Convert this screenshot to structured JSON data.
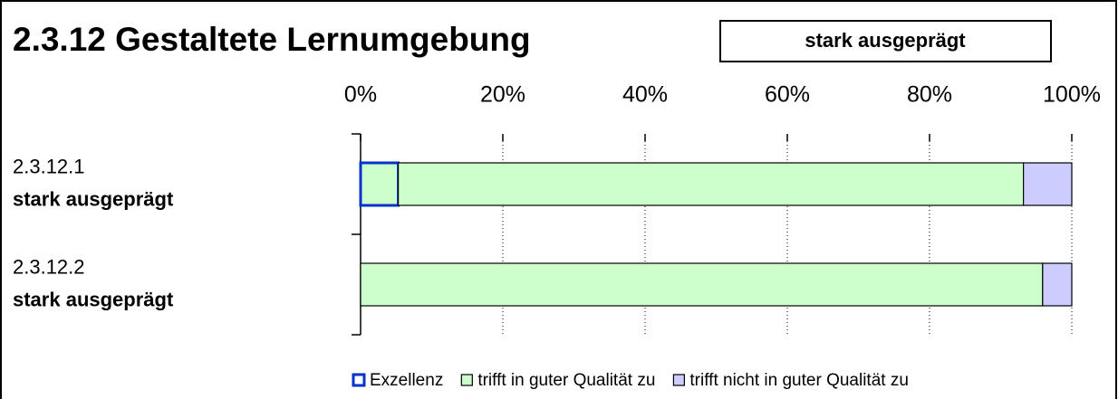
{
  "chart_data": {
    "type": "stacked_barh",
    "title": "2.3.12 Gestaltete Lernumgebung",
    "badge": "stark ausgeprägt",
    "categories": [
      "2.3.12.1",
      "2.3.12.2"
    ],
    "category_ratings": [
      "stark ausgeprägt",
      "stark ausgeprägt"
    ],
    "series": [
      {
        "name": "Exzellenz",
        "color": "#0033cc",
        "fill": "#ccffcc",
        "values": [
          5.3,
          0
        ]
      },
      {
        "name": "trifft in guter Qualität zu",
        "color": "#000000",
        "fill": "#ccffcc",
        "values": [
          87.9,
          95.9
        ]
      },
      {
        "name": "trifft nicht in guter Qualität zu",
        "color": "#000000",
        "fill": "#ccccff",
        "values": [
          6.8,
          4.1
        ]
      }
    ],
    "xlim": [
      0,
      100
    ],
    "xticks": [
      {
        "value": 0,
        "label": "0%"
      },
      {
        "value": 20,
        "label": "20%"
      },
      {
        "value": 40,
        "label": "40%"
      },
      {
        "value": 60,
        "label": "60%"
      },
      {
        "value": 80,
        "label": "80%"
      },
      {
        "value": 100,
        "label": "100%"
      }
    ],
    "grid": true,
    "legend": "bottom"
  }
}
